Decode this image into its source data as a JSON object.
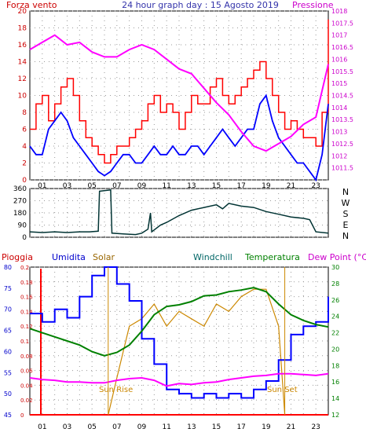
{
  "header": {
    "left_label": "Forza vento",
    "title": "24 hour graph day : 15 Agosto 2019",
    "right_label": "Pressione"
  },
  "colors": {
    "wind": "#ff0000",
    "gust": "#ff0000",
    "avg_wind": "#0000ff",
    "pressure": "#ff00ff",
    "direction": "#003333",
    "rain": "#ff0000",
    "humidity": "#0000ff",
    "solar": "#cc8800",
    "windchill": "#006666",
    "temperature": "#008000",
    "dewpoint": "#ff00ff",
    "left_axis": "#cc0000",
    "right_axis": "#cc00cc",
    "mid_axis": "#0000cc",
    "temp_axis": "#008000"
  },
  "x_ticks": [
    "01",
    "03",
    "05",
    "07",
    "09",
    "11",
    "13",
    "15",
    "17",
    "19",
    "21",
    "23"
  ],
  "chart_data": [
    {
      "type": "line",
      "title": "24 hour graph day : 15 Agosto 2019",
      "xlabel": "",
      "x_range": [
        0,
        24
      ],
      "ylabel_left": "Forza vento",
      "ylim_left": [
        0,
        20
      ],
      "yticks_left": [
        "0",
        "2",
        "4",
        "6",
        "8",
        "10",
        "12",
        "14",
        "16",
        "18",
        "20"
      ],
      "ylabel_right": "Pressione",
      "ylim_right": [
        1011,
        1018
      ],
      "yticks_right": [
        "1011.5",
        "1012",
        "1012.5",
        "1013",
        "1013.5",
        "1014",
        "1014.5",
        "1015",
        "1015.5",
        "1016",
        "1016.5",
        "1017",
        "1017.5",
        "1018"
      ],
      "grid": true,
      "series": [
        {
          "name": "Forza vento",
          "axis": "left",
          "x": [
            0,
            0.5,
            1,
            1.5,
            2,
            2.5,
            3,
            3.5,
            4,
            4.5,
            5,
            5.5,
            6,
            6.5,
            7,
            7.5,
            8,
            8.5,
            9,
            9.5,
            10,
            10.5,
            11,
            11.5,
            12,
            12.5,
            13,
            13.5,
            14,
            14.5,
            15,
            15.5,
            16,
            16.5,
            17,
            17.5,
            18,
            18.5,
            19,
            19.5,
            20,
            20.5,
            21,
            21.5,
            22,
            22.5,
            23,
            23.5,
            24
          ],
          "values": [
            6,
            9,
            10,
            7,
            9,
            11,
            12,
            10,
            7,
            5,
            4,
            3,
            2,
            3,
            4,
            4,
            5,
            6,
            7,
            9,
            10,
            8,
            9,
            8,
            6,
            8,
            10,
            9,
            9,
            11,
            12,
            10,
            9,
            10,
            11,
            12,
            13,
            14,
            12,
            10,
            8,
            6,
            7,
            6,
            5,
            5,
            4,
            8,
            19
          ]
        },
        {
          "name": "Vento medio",
          "axis": "left",
          "x": [
            0,
            0.5,
            1,
            1.5,
            2,
            2.5,
            3,
            3.5,
            4,
            4.5,
            5,
            5.5,
            6,
            6.5,
            7,
            7.5,
            8,
            8.5,
            9,
            9.5,
            10,
            10.5,
            11,
            11.5,
            12,
            12.5,
            13,
            13.5,
            14,
            14.5,
            15,
            15.5,
            16,
            16.5,
            17,
            17.5,
            18,
            18.5,
            19,
            19.5,
            20,
            20.5,
            21,
            21.5,
            22,
            22.5,
            23,
            23.5,
            24
          ],
          "values": [
            4,
            3,
            3,
            6,
            7,
            8,
            7,
            5,
            4,
            3,
            2,
            1,
            0.5,
            1,
            2,
            3,
            3,
            2,
            2,
            3,
            4,
            3,
            3,
            4,
            3,
            3,
            4,
            4,
            3,
            4,
            5,
            6,
            5,
            4,
            5,
            6,
            6,
            9,
            10,
            7,
            5,
            4,
            3,
            2,
            2,
            1,
            0,
            3,
            9
          ]
        },
        {
          "name": "Pressione",
          "axis": "right",
          "x": [
            0,
            1,
            2,
            3,
            4,
            5,
            6,
            7,
            8,
            9,
            10,
            11,
            12,
            13,
            14,
            15,
            16,
            17,
            18,
            19,
            20,
            21,
            22,
            23,
            24
          ],
          "values": [
            1016.4,
            1016.7,
            1017,
            1016.6,
            1016.7,
            1016.3,
            1016.1,
            1016.1,
            1016.4,
            1016.6,
            1016.4,
            1016.0,
            1015.6,
            1015.4,
            1014.8,
            1014.2,
            1013.7,
            1013.0,
            1012.4,
            1012.2,
            1012.5,
            1012.8,
            1013.3,
            1013.6,
            1015.8
          ]
        }
      ]
    },
    {
      "type": "line",
      "title": "",
      "x_range": [
        0,
        24
      ],
      "ylim": [
        0,
        360
      ],
      "yticks": [
        "0",
        "90",
        "180",
        "270",
        "360"
      ],
      "direction_labels": [
        "N",
        "W",
        "S",
        "E",
        "N"
      ],
      "grid": true,
      "series": [
        {
          "name": "Direzione vento",
          "x": [
            0,
            1,
            2,
            3,
            4,
            4.8,
            5.5,
            5.6,
            6.5,
            6.6,
            7.5,
            8.5,
            9,
            9.5,
            9.7,
            9.8,
            10.5,
            11,
            12,
            13,
            14,
            15,
            15.5,
            16,
            17,
            18,
            19,
            20,
            21,
            22,
            22.5,
            23,
            24
          ],
          "values": [
            40,
            35,
            40,
            35,
            40,
            40,
            45,
            340,
            350,
            30,
            25,
            20,
            30,
            60,
            180,
            40,
            90,
            110,
            160,
            200,
            220,
            240,
            210,
            250,
            230,
            220,
            190,
            170,
            150,
            140,
            130,
            40,
            30
          ]
        }
      ]
    },
    {
      "type": "line",
      "title": "",
      "legend": [
        "Pioggia",
        "Umidita",
        "Solar",
        "Windchill",
        "Temperatura",
        "Dew Point (°C)"
      ],
      "x_range": [
        0,
        24
      ],
      "ylim_rain": [
        0,
        0.2
      ],
      "yticks_rain": [
        "0",
        "0.02",
        "0.04",
        "0.06",
        "0.08",
        "0.1",
        "0.12",
        "0.14",
        "0.16",
        "0.18",
        "0.2"
      ],
      "ylim_humidity": [
        45,
        80
      ],
      "yticks_humidity": [
        "45",
        "50",
        "55",
        "60",
        "65",
        "70",
        "75",
        "80"
      ],
      "ylim_temp": [
        12,
        30
      ],
      "yticks_temp": [
        "12",
        "14",
        "16",
        "18",
        "20",
        "22",
        "24",
        "26",
        "28",
        "30"
      ],
      "annotations": [
        "Sun Rise",
        "Sun Set"
      ],
      "sunrise_hour": 6.3,
      "sunset_hour": 20.5,
      "series": [
        {
          "name": "Pioggia",
          "axis": "rain",
          "x": [
            0,
            24
          ],
          "values": [
            0,
            0
          ]
        },
        {
          "name": "Umidita",
          "axis": "humidity",
          "x": [
            0,
            1,
            2,
            3,
            4,
            5,
            6,
            7,
            8,
            9,
            10,
            11,
            12,
            13,
            14,
            15,
            16,
            17,
            18,
            19,
            20,
            21,
            22,
            23,
            24
          ],
          "values": [
            69,
            67,
            70,
            68,
            73,
            78,
            80,
            76,
            72,
            63,
            57,
            51,
            50,
            49,
            50,
            49,
            50,
            49,
            51,
            53,
            58,
            64,
            66,
            67,
            73
          ]
        },
        {
          "name": "Solar",
          "axis": "rain",
          "x": [
            6.3,
            7,
            8,
            9,
            10,
            11,
            12,
            13,
            14,
            15,
            16,
            17,
            18,
            19,
            20,
            20.5
          ],
          "values": [
            0,
            0.05,
            0.12,
            0.13,
            0.15,
            0.12,
            0.14,
            0.13,
            0.12,
            0.15,
            0.14,
            0.16,
            0.17,
            0.17,
            0.12,
            0
          ]
        },
        {
          "name": "Temperatura",
          "axis": "temp",
          "x": [
            0,
            1,
            2,
            3,
            4,
            5,
            6,
            7,
            8,
            9,
            10,
            11,
            12,
            13,
            14,
            15,
            16,
            17,
            18,
            19,
            20,
            21,
            22,
            23,
            24
          ],
          "values": [
            22.5,
            22.0,
            21.5,
            21.0,
            20.5,
            19.7,
            19.2,
            19.6,
            20.5,
            22.2,
            24.2,
            25.2,
            25.4,
            25.8,
            26.5,
            26.6,
            27.0,
            27.2,
            27.5,
            27.0,
            25.5,
            24.2,
            23.5,
            23.0,
            22.7
          ]
        },
        {
          "name": "Dew Point (°C)",
          "axis": "temp",
          "x": [
            0,
            1,
            2,
            3,
            4,
            5,
            6,
            7,
            8,
            9,
            10,
            11,
            12,
            13,
            14,
            15,
            16,
            17,
            18,
            19,
            20,
            21,
            22,
            23,
            24
          ],
          "values": [
            16.5,
            16.3,
            16.2,
            16.0,
            16.0,
            15.9,
            15.9,
            16.2,
            16.4,
            16.5,
            16.2,
            15.5,
            15.8,
            15.7,
            15.9,
            16.0,
            16.3,
            16.5,
            16.7,
            16.8,
            17.0,
            17.0,
            16.9,
            16.8,
            17.0
          ]
        }
      ]
    }
  ]
}
